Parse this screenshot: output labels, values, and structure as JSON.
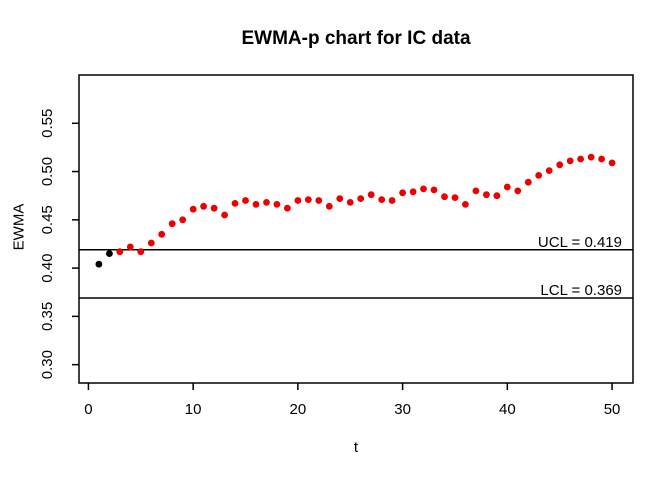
{
  "chart_data": {
    "type": "scatter",
    "title": "EWMA-p chart for IC data",
    "xlabel": "t",
    "ylabel": "EWMA",
    "xlim": [
      -0.9,
      52.0
    ],
    "ylim": [
      0.281,
      0.6
    ],
    "grid": false,
    "legend": null,
    "x_ticks": {
      "values": [
        0,
        10,
        20,
        30,
        40,
        50
      ],
      "labels": [
        "0",
        "10",
        "20",
        "30",
        "40",
        "50"
      ]
    },
    "y_ticks": {
      "values": [
        0.3,
        0.35,
        0.4,
        0.45,
        0.5,
        0.55
      ],
      "labels": [
        "0.30",
        "0.35",
        "0.40",
        "0.45",
        "0.50",
        "0.55"
      ]
    },
    "series": [
      {
        "name": "EWMA",
        "marker": "filled-circle",
        "color_default": "#ee0000",
        "color_overrides": [
          {
            "index": 0,
            "color": "#000000"
          },
          {
            "index": 1,
            "color": "#000000"
          }
        ],
        "x": [
          1,
          2,
          3,
          4,
          5,
          6,
          7,
          8,
          9,
          10,
          11,
          12,
          13,
          14,
          15,
          16,
          17,
          18,
          19,
          20,
          21,
          22,
          23,
          24,
          25,
          26,
          27,
          28,
          29,
          30,
          31,
          32,
          33,
          34,
          35,
          36,
          37,
          38,
          39,
          40,
          41,
          42,
          43,
          44,
          45,
          46,
          47,
          48,
          49,
          50
        ],
        "y": [
          0.404,
          0.415,
          0.417,
          0.422,
          0.417,
          0.426,
          0.435,
          0.446,
          0.45,
          0.461,
          0.464,
          0.462,
          0.455,
          0.467,
          0.47,
          0.466,
          0.468,
          0.466,
          0.462,
          0.47,
          0.471,
          0.47,
          0.464,
          0.472,
          0.468,
          0.472,
          0.476,
          0.471,
          0.47,
          0.478,
          0.479,
          0.482,
          0.481,
          0.474,
          0.473,
          0.466,
          0.48,
          0.476,
          0.475,
          0.484,
          0.48,
          0.489,
          0.496,
          0.501,
          0.507,
          0.511,
          0.513,
          0.515,
          0.513,
          0.509
        ]
      }
    ],
    "control_limits": [
      {
        "name": "UCL",
        "value": 0.419,
        "label": "UCL = 0.419"
      },
      {
        "name": "LCL",
        "value": 0.369,
        "label": "LCL = 0.369"
      }
    ],
    "colors": {
      "axis_and_lines": "#000000",
      "point_default": "#ee0000",
      "point_start": "#000000",
      "background": "#ffffff"
    }
  }
}
